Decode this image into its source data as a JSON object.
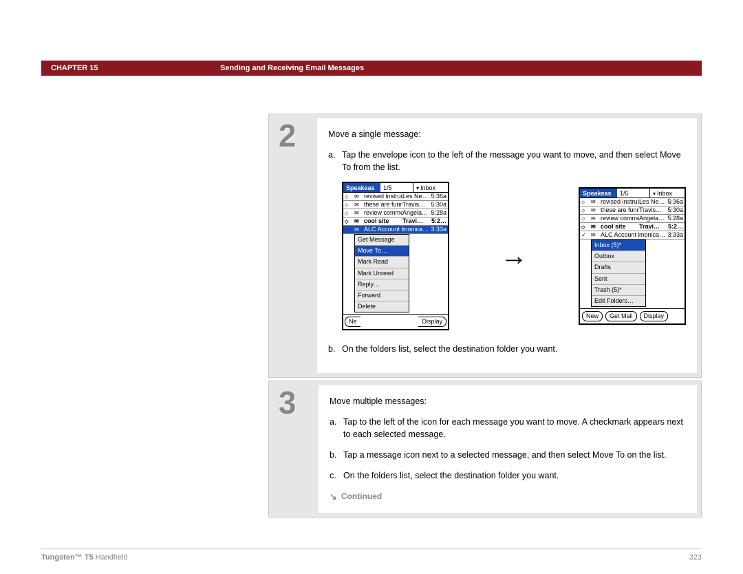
{
  "header": {
    "chapter": "CHAPTER 15",
    "title": "Sending and Receiving Email Messages",
    "bar_color": "#8a1820"
  },
  "steps": [
    {
      "number": "2",
      "intro": "Move a single message:",
      "items": [
        {
          "label": "a.",
          "text": "Tap the envelope icon to the left of the message you want to move, and then select Move To from the list."
        },
        {
          "label": "b.",
          "text": "On the folders list, select the destination folder you want."
        }
      ]
    },
    {
      "number": "3",
      "intro": "Move multiple messages:",
      "items": [
        {
          "label": "a.",
          "text": "Tap to the left of the icon for each message you want to move. A checkmark appears next to each selected message."
        },
        {
          "label": "b.",
          "text": "Tap a message icon next to a selected message, and then select Move To on the list."
        },
        {
          "label": "c.",
          "text": "On the folders list, select the destination folder you want."
        }
      ],
      "continued": "Continued"
    }
  ],
  "screenA": {
    "app": "Speakeas",
    "count": "1/5",
    "folder": "Inbox",
    "rows": [
      {
        "mark": "diamond",
        "icon": "env",
        "subj": "revised instruc…",
        "from": "Les Ne…",
        "time": "5:36a",
        "bold": false
      },
      {
        "mark": "diamond",
        "icon": "env",
        "subj": "these are funny",
        "from": "Travis…",
        "time": "5:30a",
        "bold": false
      },
      {
        "mark": "diamond",
        "icon": "env",
        "subj": "review comme…",
        "from": "Angela…",
        "time": "5:28a",
        "bold": false
      },
      {
        "mark": "diamond",
        "icon": "env",
        "subj": "cool site",
        "from": "Travi…",
        "time": "5:2…",
        "bold": true
      },
      {
        "mark": "",
        "icon": "env",
        "subj": "ALC Account Fo…",
        "from": "monica…",
        "time": "3:33a",
        "bold": false,
        "selected": true
      }
    ],
    "menu": [
      "Get Message",
      "Move To…",
      "Mark Read",
      "Mark Unread",
      "Reply…",
      "Forward",
      "Delete"
    ],
    "menu_selected": 1,
    "bottom_left": "Ne",
    "bottom_right": "Display"
  },
  "screenB": {
    "app": "Speakeas",
    "count": "1/5",
    "folder": "Inbox",
    "rows": [
      {
        "mark": "diamond",
        "icon": "env",
        "subj": "revised instruc…",
        "from": "Les Ne…",
        "time": "5:36a",
        "bold": false
      },
      {
        "mark": "diamond",
        "icon": "env",
        "subj": "these are funny",
        "from": "Travis…",
        "time": "5:30a",
        "bold": false
      },
      {
        "mark": "diamond",
        "icon": "env",
        "subj": "review comme…",
        "from": "Angela…",
        "time": "5:28a",
        "bold": false
      },
      {
        "mark": "diamond",
        "icon": "env",
        "subj": "cool site",
        "from": "Travi…",
        "time": "5:2…",
        "bold": true
      },
      {
        "mark": "check",
        "icon": "env",
        "subj": "ALC Account Fo…",
        "from": "monica…",
        "time": "3:33a",
        "bold": false
      }
    ],
    "menu": [
      "Inbox (5)*",
      "Outbox",
      "Drafts",
      "Sent",
      "Trash (5)*",
      "Edit Folders…"
    ],
    "menu_selected": 0,
    "buttons": [
      "New",
      "Get Mail",
      "Display"
    ]
  },
  "footer": {
    "product_bold": "Tungsten™ T5",
    "product_rest": " Handheld",
    "page": "323"
  },
  "colors": {
    "step_bg": "#e6e6e6",
    "num_color": "#888888",
    "palm_blue": "#1a4db3"
  }
}
